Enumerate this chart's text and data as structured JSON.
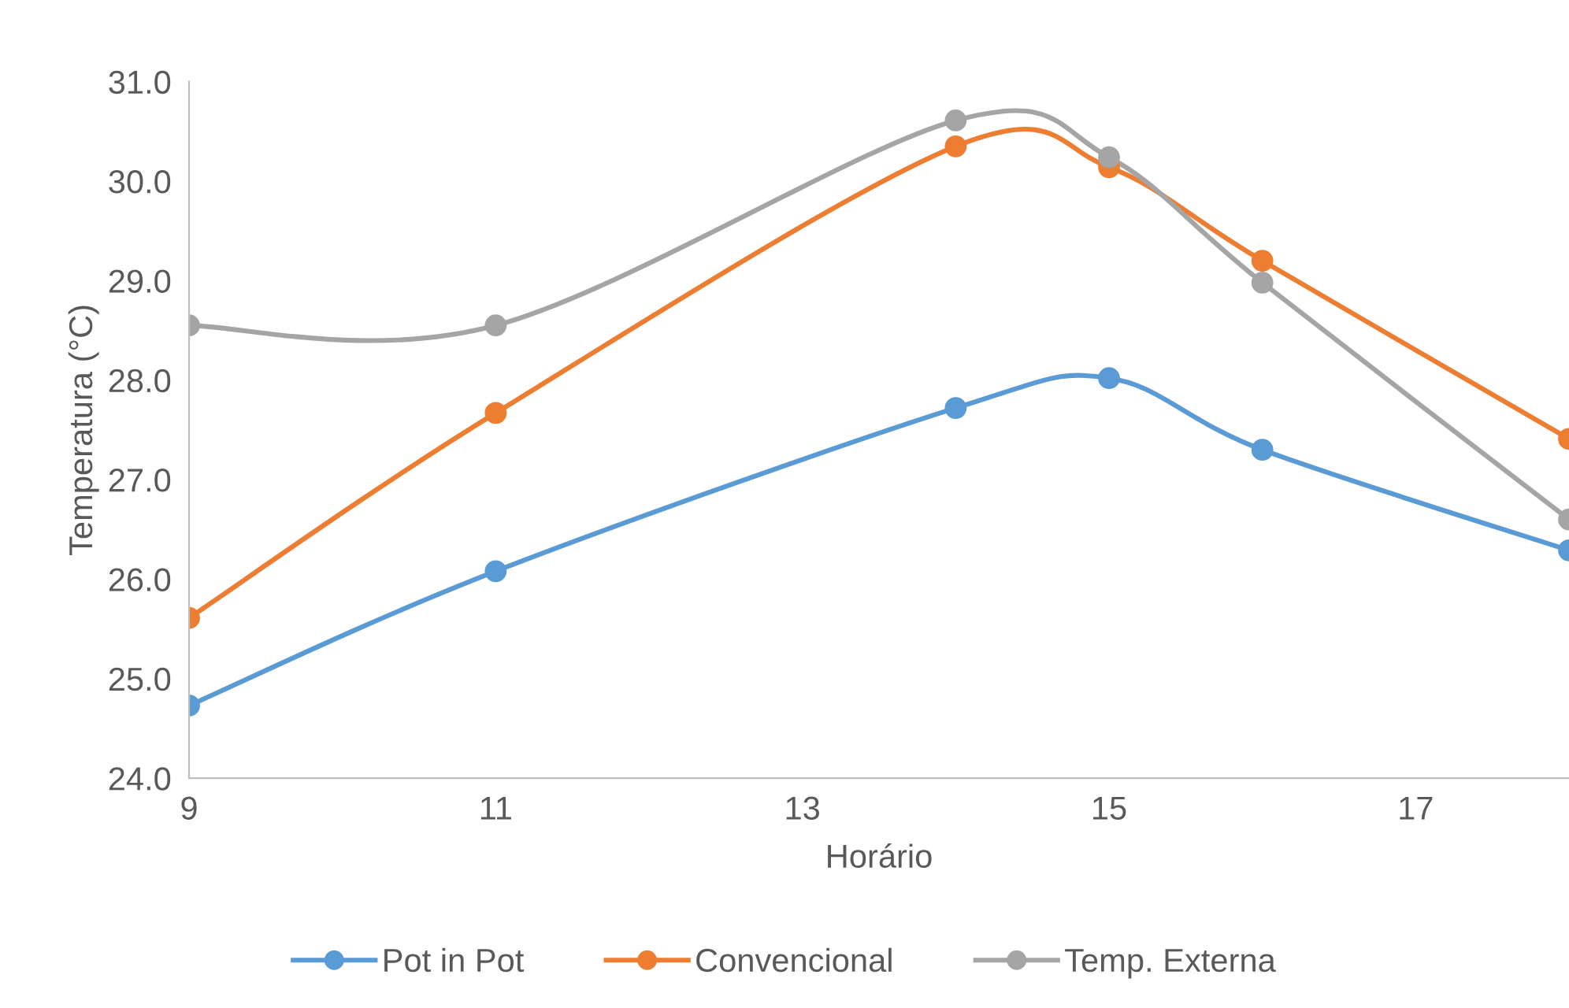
{
  "chart_data": {
    "type": "line",
    "xlabel": "Horário",
    "ylabel": "Temperatura (°C)",
    "x": [
      9,
      11,
      14,
      15,
      16,
      18
    ],
    "xlim": [
      9,
      18
    ],
    "xticks": [
      9,
      11,
      13,
      15,
      17
    ],
    "ylim": [
      24,
      31
    ],
    "yticks": [
      {
        "value": 24,
        "label": "24.0"
      },
      {
        "value": 25,
        "label": "25.0"
      },
      {
        "value": 26,
        "label": "26.0"
      },
      {
        "value": 27,
        "label": "27.0"
      },
      {
        "value": 28,
        "label": "28.0"
      },
      {
        "value": 29,
        "label": "29.0"
      },
      {
        "value": 30,
        "label": "30.0"
      },
      {
        "value": 31,
        "label": "31.0"
      }
    ],
    "series": [
      {
        "name": "Pot in Pot",
        "color": "#5b9bd5",
        "values": [
          24.73,
          26.08,
          27.72,
          28.02,
          27.3,
          26.29
        ]
      },
      {
        "name": "Convencional",
        "color": "#ed7d31",
        "values": [
          25.61,
          27.67,
          30.35,
          30.14,
          29.2,
          27.41
        ]
      },
      {
        "name": "Temp. Externa",
        "color": "#a5a5a5",
        "values": [
          28.55,
          28.55,
          30.61,
          30.24,
          28.98,
          26.6
        ]
      }
    ],
    "marker": "circle",
    "line_style": "solid",
    "grid": false,
    "legend": "bottom"
  }
}
